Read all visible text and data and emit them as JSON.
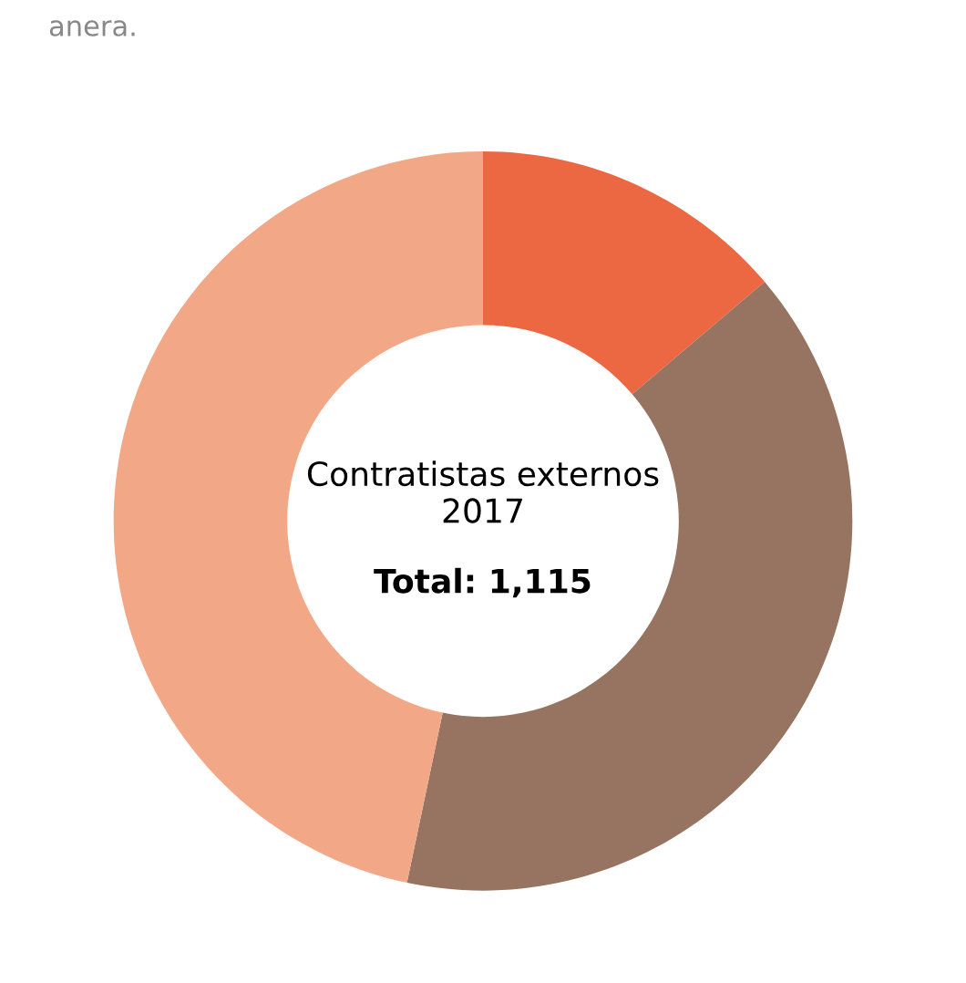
{
  "chart_data": {
    "type": "donut",
    "title": "Contratistas externos\n2017",
    "subtitle": "Total: 1,115",
    "annotations": [
      "anera."
    ],
    "categories": [
      null,
      null,
      null
    ],
    "values": [
      13.8,
      39.5,
      46.7
    ],
    "colors": [
      "#ec6843",
      "#977461",
      "#f2a886"
    ]
  }
}
